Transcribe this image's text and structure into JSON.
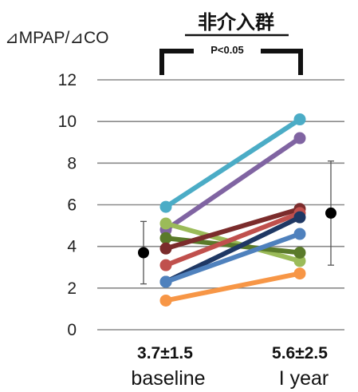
{
  "chart_data": {
    "type": "line",
    "title": "非介入群",
    "ylabel": "⊿MPAP/⊿CO",
    "xlabel": "",
    "ylim": [
      0,
      12
    ],
    "yticks": [
      0,
      2,
      4,
      6,
      8,
      10,
      12
    ],
    "grid": true,
    "categories": [
      "baseline",
      "I year"
    ],
    "category_stats": [
      "3.7±1.5",
      "5.6±2.5"
    ],
    "significance": "P<0.05",
    "series": [
      {
        "values": [
          5.9,
          10.1
        ],
        "color": "#4bacc6"
      },
      {
        "values": [
          4.8,
          9.2
        ],
        "color": "#8064a2"
      },
      {
        "values": [
          5.1,
          3.3
        ],
        "color": "#9bbb59"
      },
      {
        "values": [
          4.4,
          3.7
        ],
        "color": "#5a7a2a"
      },
      {
        "values": [
          3.9,
          5.8
        ],
        "color": "#7b2c2c"
      },
      {
        "values": [
          3.1,
          5.6
        ],
        "color": "#c0504d"
      },
      {
        "values": [
          2.3,
          5.4
        ],
        "color": "#1f3864"
      },
      {
        "values": [
          2.3,
          4.6
        ],
        "color": "#4f81bd"
      },
      {
        "values": [
          1.4,
          2.7
        ],
        "color": "#f79646"
      }
    ],
    "summary": [
      {
        "mean": 3.7,
        "sd": 1.5
      },
      {
        "mean": 5.6,
        "sd": 2.5
      }
    ]
  }
}
